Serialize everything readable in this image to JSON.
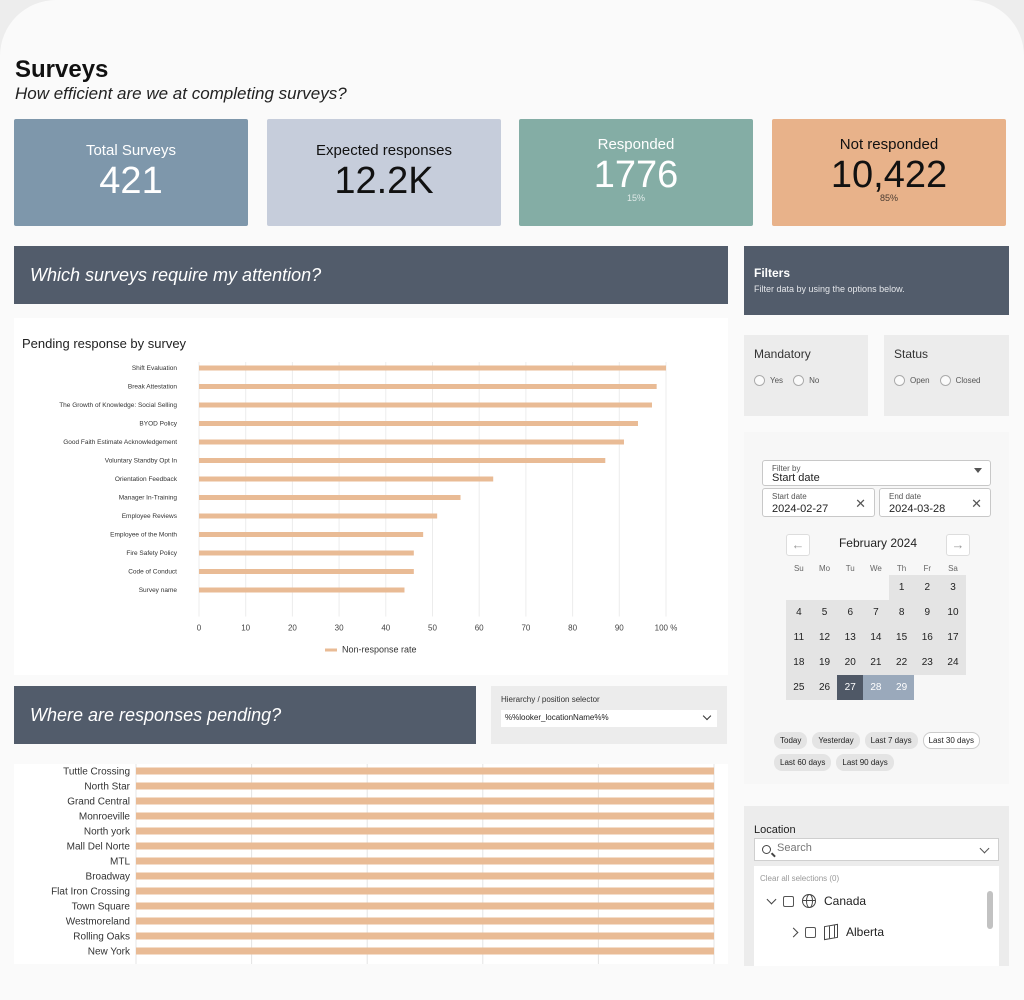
{
  "header": {
    "title": "Surveys",
    "subtitle": "How efficient are we at completing surveys?"
  },
  "kpis": [
    {
      "label": "Total Surveys",
      "value": "421",
      "sub": ""
    },
    {
      "label": "Expected responses",
      "value": "12.2K",
      "sub": ""
    },
    {
      "label": "Responded",
      "value": "1776",
      "sub": "15%"
    },
    {
      "label": "Not responded",
      "value": "10,422",
      "sub": "85%"
    }
  ],
  "colors": {
    "kpi_total": "#7e97ab",
    "kpi_expected": "#c6cddb",
    "kpi_responded": "#84ada5",
    "kpi_not_responded": "#e8b28a",
    "banner": "#525c6b",
    "bar": "#e9bb95"
  },
  "sections": {
    "attention": "Which surveys require my attention?",
    "pending": "Where are responses pending?"
  },
  "filters": {
    "title": "Filters",
    "description": "Filter data by using the options below.",
    "mandatory": {
      "title": "Mandatory",
      "options": [
        "Yes",
        "No"
      ]
    },
    "status": {
      "title": "Status",
      "options": [
        "Open",
        "Closed"
      ]
    },
    "filter_by": {
      "label": "Filter by",
      "value": "Start date"
    },
    "start_date": {
      "label": "Start date",
      "value": "2024-02-27"
    },
    "end_date": {
      "label": "End date",
      "value": "2024-03-28"
    },
    "calendar": {
      "month": "February 2024",
      "prev_icon": "arrow-left-icon",
      "next_icon": "arrow-right-icon",
      "weekdays": [
        "Su",
        "Mo",
        "Tu",
        "We",
        "Th",
        "Fr",
        "Sa"
      ],
      "first_weekday_index": 4,
      "days_in_month": 29,
      "selected_day": 27,
      "range_days": [
        28,
        29
      ]
    },
    "quick_ranges": [
      "Today",
      "Yesterday",
      "Last 7 days",
      "Last 30 days",
      "Last 60 days",
      "Last 90 days"
    ]
  },
  "hierarchy": {
    "label": "Hierarchy / position selector",
    "value": "%%looker_locationName%%"
  },
  "location": {
    "title": "Location",
    "search_placeholder": "Search",
    "clear_label": "Clear all selections (0)",
    "tree": [
      {
        "label": "Canada",
        "icon": "globe-icon",
        "expanded": true
      },
      {
        "label": "Alberta",
        "icon": "map-icon",
        "expanded": false
      }
    ]
  },
  "chart_data": [
    {
      "type": "bar",
      "title": "Pending response by survey",
      "orientation": "horizontal",
      "categories": [
        "Shift Evaluation",
        "Break Attestation",
        "The Growth of Knowledge: Social Selling",
        "BYOD Policy",
        "Good Faith Estimate Acknowledgement",
        "Voluntary Standby Opt In",
        "Orientation Feedback",
        "Manager In-Training",
        "Employee Reviews",
        "Employee of the Month",
        "Fire Safety Policy",
        "Code of Conduct",
        "Survey name"
      ],
      "series": [
        {
          "name": "Non-response rate",
          "values": [
            100,
            98,
            97,
            94,
            91,
            87,
            63,
            56,
            51,
            48,
            46,
            46,
            44
          ]
        }
      ],
      "x_ticks": [
        "0",
        "10",
        "20",
        "30",
        "40",
        "50",
        "60",
        "70",
        "80",
        "90",
        "100 %"
      ],
      "xlim": [
        0,
        100
      ],
      "legend": "bottom",
      "grid": true
    },
    {
      "type": "bar",
      "orientation": "horizontal",
      "categories": [
        "Tuttle Crossing",
        "North Star",
        "Grand Central",
        "Monroeville",
        "North york",
        "Mall Del Norte",
        "MTL",
        "Broadway",
        "Flat Iron Crossing",
        "Town Square",
        "Westmoreland",
        "Rolling Oaks",
        "New York"
      ],
      "values": [
        100,
        100,
        100,
        100,
        100,
        100,
        100,
        100,
        100,
        100,
        100,
        100,
        100
      ],
      "xlim": [
        0,
        100
      ],
      "grid": true
    }
  ]
}
